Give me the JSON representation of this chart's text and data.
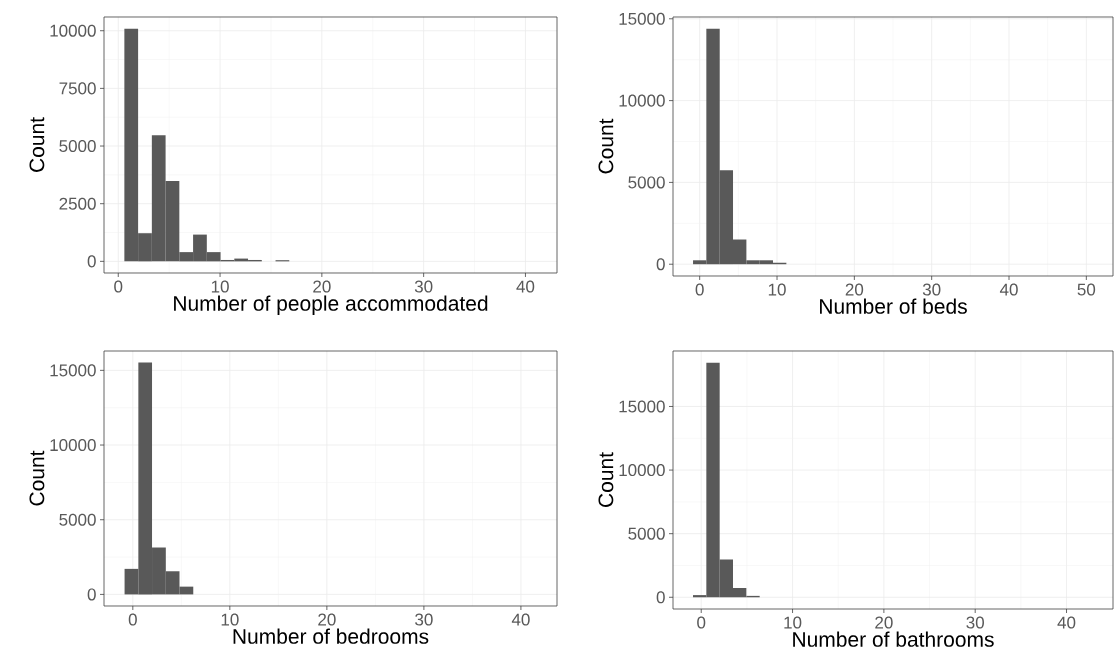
{
  "chart_data": [
    {
      "type": "histogram",
      "xlabel": "Number of people accommodated",
      "ylabel": "Count",
      "color": "#595959",
      "grid": true,
      "bins": [
        0.6,
        1.95,
        3.3,
        4.65,
        6,
        7.35,
        8.7,
        10.05,
        11.4,
        12.75,
        14.1,
        15.45,
        16.8,
        18.15,
        19.5,
        20.85,
        22.2,
        23.55,
        24.9,
        26.25,
        27.6,
        28.95,
        30.3,
        31.65,
        33,
        34.35,
        35.7,
        37.05,
        38.4,
        39.75,
        41.1
      ],
      "values": [
        10080,
        1220,
        5470,
        3480,
        400,
        1160,
        400,
        60,
        120,
        60,
        0,
        50,
        0,
        0,
        0,
        0,
        0,
        0,
        0,
        0,
        0,
        0,
        0,
        0,
        0,
        0,
        0,
        0,
        0,
        0
      ],
      "xlim": [
        -1.4,
        43.1
      ],
      "ylim": [
        -505,
        10595
      ],
      "xticks": [
        0,
        10,
        20,
        30,
        40
      ],
      "yticks": [
        0,
        2500,
        5000,
        7500,
        10000
      ]
    },
    {
      "type": "histogram",
      "xlabel": "Number of beds",
      "ylabel": "Count",
      "color": "#595959",
      "grid": true,
      "bins": [
        -0.86,
        0.86,
        2.59,
        4.31,
        6.04,
        7.76,
        9.48,
        11.21,
        12.93,
        14.66,
        16.38,
        18.1,
        19.83,
        21.55,
        23.28,
        25,
        26.72,
        28.45,
        30.17,
        31.9,
        33.62,
        35.34,
        37.07,
        38.79,
        40.52,
        42.24,
        43.96,
        45.69,
        47.41,
        49.14,
        50.86
      ],
      "values": [
        240,
        14390,
        5740,
        1510,
        240,
        240,
        90,
        0,
        0,
        0,
        0,
        0,
        0,
        0,
        0,
        0,
        0,
        0,
        0,
        0,
        0,
        0,
        0,
        0,
        0,
        0,
        0,
        0,
        0,
        0
      ],
      "xlim": [
        -3.45,
        53.45
      ],
      "ylim": [
        -720,
        15110
      ],
      "xticks": [
        0,
        10,
        20,
        30,
        40,
        50
      ],
      "yticks": [
        0,
        5000,
        10000,
        15000
      ]
    },
    {
      "type": "histogram",
      "xlabel": "Number of bedrooms",
      "ylabel": "Count",
      "color": "#595959",
      "grid": true,
      "bins": [
        -0.85,
        0.57,
        1.98,
        3.4,
        4.81,
        6.23,
        7.64,
        9.06,
        10.47,
        11.89,
        13.3,
        14.72,
        16.13,
        17.55,
        18.96,
        20.38,
        21.79,
        23.21,
        24.62,
        26.04,
        27.45,
        28.87,
        30.28,
        31.7,
        33.11,
        34.53,
        35.94,
        37.36,
        38.77,
        40.19,
        41.6
      ],
      "values": [
        1710,
        15520,
        3140,
        1550,
        520,
        0,
        0,
        0,
        0,
        0,
        0,
        0,
        0,
        0,
        0,
        0,
        0,
        0,
        0,
        0,
        0,
        0,
        0,
        0,
        0,
        0,
        0,
        0,
        0,
        0
      ],
      "xlim": [
        -2.97,
        43.72
      ],
      "ylim": [
        -776,
        16296
      ],
      "xticks": [
        0,
        10,
        20,
        30,
        40
      ],
      "yticks": [
        0,
        5000,
        10000,
        15000
      ]
    },
    {
      "type": "histogram",
      "xlabel": "Number of bathrooms",
      "ylabel": "Count",
      "color": "#595959",
      "grid": true,
      "bins": [
        -0.9,
        0.56,
        2.02,
        3.48,
        4.94,
        6.4,
        7.86,
        9.32,
        10.78,
        12.24,
        13.7,
        15.16,
        16.62,
        18.08,
        19.54,
        21,
        22.46,
        23.92,
        25.38,
        26.84,
        28.3,
        29.76,
        31.22,
        32.68,
        34.14,
        35.6,
        37.06,
        38.52,
        39.98,
        41.44,
        42.9
      ],
      "values": [
        170,
        18440,
        2970,
        730,
        110,
        0,
        0,
        0,
        0,
        0,
        0,
        0,
        0,
        0,
        0,
        0,
        0,
        0,
        0,
        0,
        0,
        0,
        0,
        0,
        0,
        0,
        0,
        0,
        0,
        0
      ],
      "xlim": [
        -3.09,
        45.09
      ],
      "ylim": [
        -922,
        19362
      ],
      "xticks": [
        0,
        10,
        20,
        30,
        40
      ],
      "yticks": [
        0,
        5000,
        10000,
        15000
      ]
    }
  ]
}
